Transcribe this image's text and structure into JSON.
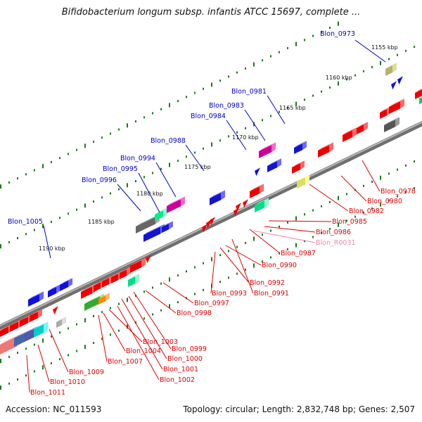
{
  "header": {
    "title": "Bifidobacterium longum subsp. infantis ATCC 15697, complete ..."
  },
  "footer": {
    "accession": "Accession: NC_011593",
    "topology": "Topology: circular; Length: 2,832,748 bp; Genes: 2,507"
  },
  "colors": {
    "forward_label": "#0000cc",
    "reverse_label": "#dd0000",
    "rna_label": "#ee88aa",
    "backbone": "#808080",
    "tick": "#1a7a1a"
  },
  "kbp_marks": [
    "1155 kbp",
    "1160 kbp",
    "1165 kbp",
    "1170 kbp",
    "1175 kbp",
    "1180 kbp",
    "1185 kbp",
    "1190 kbp"
  ],
  "forward_genes": [
    "Blon_0973",
    "Blon_0981",
    "Blon_0983",
    "Blon_0984",
    "Blon_0988",
    "Blon_0994",
    "Blon_0995",
    "Blon_0996",
    "Blon_1005"
  ],
  "reverse_genes": [
    "Blon_0978",
    "Blon_0980",
    "Blon_0982",
    "Blon_0985",
    "Blon_0986",
    "Blon_R0031",
    "Blon_0987",
    "Blon_0990",
    "Blon_0992",
    "Blon_0991",
    "Blon_0993",
    "Blon_0997",
    "Blon_0998",
    "Blon_0999",
    "Blon_1000",
    "Blon_1001",
    "Blon_1002",
    "Blon_1003",
    "Blon_1004",
    "Blon_1007",
    "Blon_1009",
    "Blon_1010",
    "Blon_1011"
  ]
}
